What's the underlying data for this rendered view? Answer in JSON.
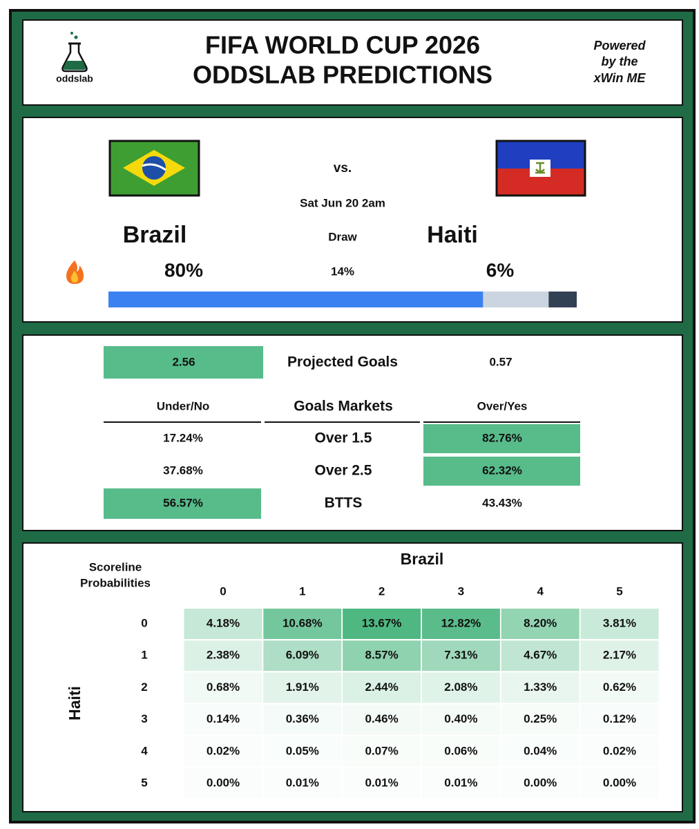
{
  "header": {
    "logo_text": "oddslab",
    "title": [
      "FIFA WORLD CUP 2026",
      "ODDSLAB PREDICTIONS"
    ],
    "powered_by": [
      "Powered",
      "by the",
      "xWin ME"
    ]
  },
  "match": {
    "vs": "vs.",
    "date": "Sat Jun 20 2am",
    "home": "Brazil",
    "draw": "Draw",
    "away": "Haiti",
    "outcomes": [
      {
        "value": 80,
        "label": "80%"
      },
      {
        "value": 14,
        "label": "14%"
      },
      {
        "value": 6,
        "label": "6%"
      }
    ]
  },
  "goals": {
    "projected": {
      "home": "2.56",
      "label": "Projected Goals",
      "away": "0.57"
    },
    "headers": [
      "Under/No",
      "Goals Markets",
      "Over/Yes"
    ],
    "rows": [
      [
        "17.24%",
        "Over 1.5",
        "82.76%"
      ],
      [
        "37.68%",
        "Over 2.5",
        "62.32%"
      ],
      [
        "56.57%",
        "BTTS",
        "43.43%"
      ]
    ]
  },
  "scoreline": {
    "title": [
      "Scoreline",
      "Probabilities"
    ],
    "column_team": "Brazil",
    "row_team": "Haiti",
    "columns": [
      "0",
      "1",
      "2",
      "3",
      "4",
      "5"
    ],
    "rows": [
      "0",
      "1",
      "2",
      "3",
      "4",
      "5"
    ],
    "cells": [
      [
        {
          "value": 4.18,
          "label": "4.18%"
        },
        {
          "value": 10.68,
          "label": "10.68%"
        },
        {
          "value": 13.67,
          "label": "13.67%"
        },
        {
          "value": 12.82,
          "label": "12.82%"
        },
        {
          "value": 8.2,
          "label": "8.20%"
        },
        {
          "value": 3.81,
          "label": "3.81%"
        }
      ],
      [
        {
          "value": 2.38,
          "label": "2.38%"
        },
        {
          "value": 6.09,
          "label": "6.09%"
        },
        {
          "value": 8.57,
          "label": "8.57%"
        },
        {
          "value": 7.31,
          "label": "7.31%"
        },
        {
          "value": 4.67,
          "label": "4.67%"
        },
        {
          "value": 2.17,
          "label": "2.17%"
        }
      ],
      [
        {
          "value": 0.68,
          "label": "0.68%"
        },
        {
          "value": 1.91,
          "label": "1.91%"
        },
        {
          "value": 2.44,
          "label": "2.44%"
        },
        {
          "value": 2.08,
          "label": "2.08%"
        },
        {
          "value": 1.33,
          "label": "1.33%"
        },
        {
          "value": 0.62,
          "label": "0.62%"
        }
      ],
      [
        {
          "value": 0.14,
          "label": "0.14%"
        },
        {
          "value": 0.36,
          "label": "0.36%"
        },
        {
          "value": 0.46,
          "label": "0.46%"
        },
        {
          "value": 0.4,
          "label": "0.40%"
        },
        {
          "value": 0.25,
          "label": "0.25%"
        },
        {
          "value": 0.12,
          "label": "0.12%"
        }
      ],
      [
        {
          "value": 0.02,
          "label": "0.02%"
        },
        {
          "value": 0.05,
          "label": "0.05%"
        },
        {
          "value": 0.07,
          "label": "0.07%"
        },
        {
          "value": 0.06,
          "label": "0.06%"
        },
        {
          "value": 0.04,
          "label": "0.04%"
        },
        {
          "value": 0.02,
          "label": "0.02%"
        }
      ],
      [
        {
          "value": 0,
          "label": "0.00%"
        },
        {
          "value": 0.01,
          "label": "0.01%"
        },
        {
          "value": 0.01,
          "label": "0.01%"
        },
        {
          "value": 0.01,
          "label": "0.01%"
        },
        {
          "value": 0,
          "label": "0.00%"
        },
        {
          "value": 0,
          "label": "0.00%"
        }
      ]
    ]
  }
}
